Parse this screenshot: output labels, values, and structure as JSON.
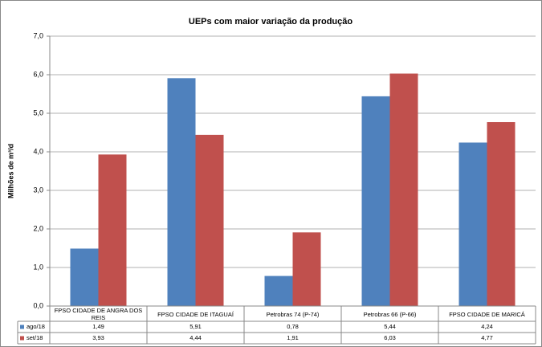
{
  "chart_data": {
    "type": "bar",
    "title": "UEPs com maior variação da produção",
    "y_label": "Milhões de m³/d",
    "categories": [
      "FPSO CIDADE DE ANGRA DOS REIS",
      "FPSO CIDADE DE ITAGUAÍ",
      "Petrobras 74 (P-74)",
      "Petrobras 66 (P-66)",
      "FPSO CIDADE DE MARICÁ"
    ],
    "series": [
      {
        "name": "ago/18",
        "color": "#4f81bd",
        "values": [
          1.49,
          5.91,
          0.78,
          5.44,
          4.24
        ],
        "value_labels": [
          "1,49",
          "5,91",
          "0,78",
          "5,44",
          "4,24"
        ]
      },
      {
        "name": "set/18",
        "color": "#c0504d",
        "values": [
          3.93,
          4.44,
          1.91,
          6.03,
          4.77
        ],
        "value_labels": [
          "3,93",
          "4,44",
          "1,91",
          "6,03",
          "4,77"
        ]
      }
    ],
    "ylim": [
      0,
      7
    ],
    "yticks": [
      {
        "value": 0,
        "label": "0,0"
      },
      {
        "value": 1,
        "label": "1,0"
      },
      {
        "value": 2,
        "label": "2,0"
      },
      {
        "value": 3,
        "label": "3,0"
      },
      {
        "value": 4,
        "label": "4,0"
      },
      {
        "value": 5,
        "label": "5,0"
      },
      {
        "value": 6,
        "label": "6,0"
      },
      {
        "value": 7,
        "label": "7,0"
      }
    ],
    "grid": true
  }
}
